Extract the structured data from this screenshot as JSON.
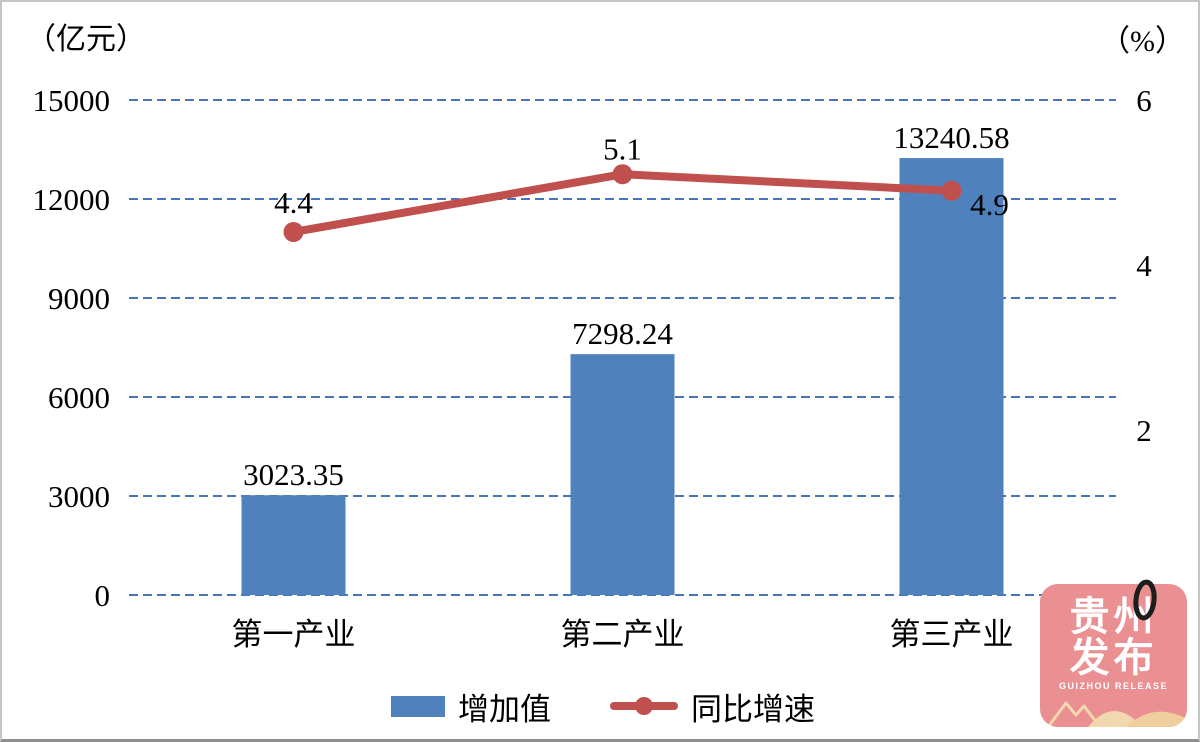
{
  "units": {
    "left": "（亿元）",
    "right": "（%）"
  },
  "legend": {
    "bar_label": "增加值",
    "line_label": "同比增速"
  },
  "watermark": {
    "line1": "贵州",
    "line2": "发布",
    "subtitle": "GUIZHOU RELEASE",
    "bg_color": "#EA8F92",
    "mountain_color": "#F2D8AE"
  },
  "chart_data": {
    "type": "bar+line",
    "categories": [
      "第一产业",
      "第二产业",
      "第三产业"
    ],
    "series": [
      {
        "name": "增加值",
        "type": "bar",
        "axis": "left",
        "color": "#4F81BD",
        "values": [
          3023.35,
          7298.24,
          13240.58
        ],
        "labels": [
          "3023.35",
          "7298.24",
          "13240.58"
        ]
      },
      {
        "name": "同比增速",
        "type": "line",
        "axis": "right",
        "color": "#C0504D",
        "values": [
          4.4,
          5.1,
          4.9
        ],
        "labels": [
          "4.4",
          "5.1",
          "4.9"
        ]
      }
    ],
    "left_axis": {
      "label": "（亿元）",
      "min": 0,
      "max": 15000,
      "ticks": [
        15000,
        12000,
        9000,
        6000,
        3000,
        0
      ]
    },
    "right_axis": {
      "label": "（%）",
      "min": 0,
      "max": 6,
      "ticks": [
        6,
        4,
        2,
        0
      ]
    },
    "grid": {
      "style": "dashed",
      "color": "#4576BD",
      "on": true
    },
    "legend_position": "bottom"
  }
}
